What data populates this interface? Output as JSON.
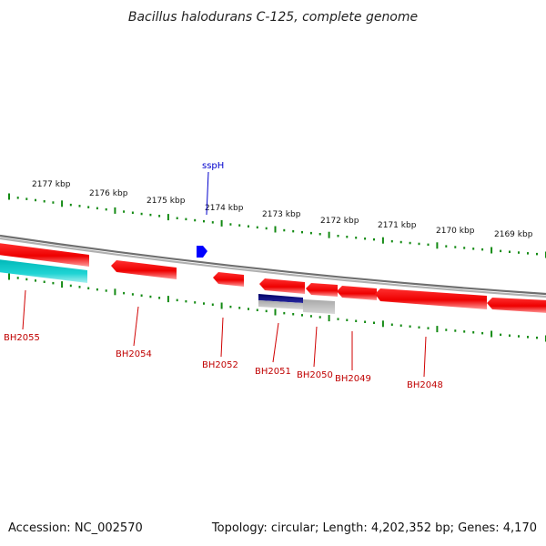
{
  "header": {
    "title": "Bacillus halodurans C-125, complete genome"
  },
  "footer": {
    "accession": "Accession: NC_002570",
    "summary": "Topology: circular; Length: 4,202,352 bp; Genes: 4,170"
  },
  "scale_labels": [
    "2177 kbp",
    "2176 kbp",
    "2175 kbp",
    "2174 kbp",
    "2173 kbp",
    "2172 kbp",
    "2171 kbp",
    "2170 kbp",
    "2169 kbp"
  ],
  "features": {
    "sspH": "sspH",
    "genes": [
      "BH2055",
      "BH2054",
      "BH2052",
      "BH2051",
      "BH2050",
      "BH2049",
      "BH2048"
    ]
  },
  "colors": {
    "forward_gene": "#ff0000",
    "cds_cyan": "#00c8c8",
    "highlight_navy": "#00007a",
    "pseudo_gray": "#b8b8b8",
    "sspH_blue": "#0000ff",
    "tick_green": "#138a13",
    "backbone": "#8a8a8a"
  }
}
